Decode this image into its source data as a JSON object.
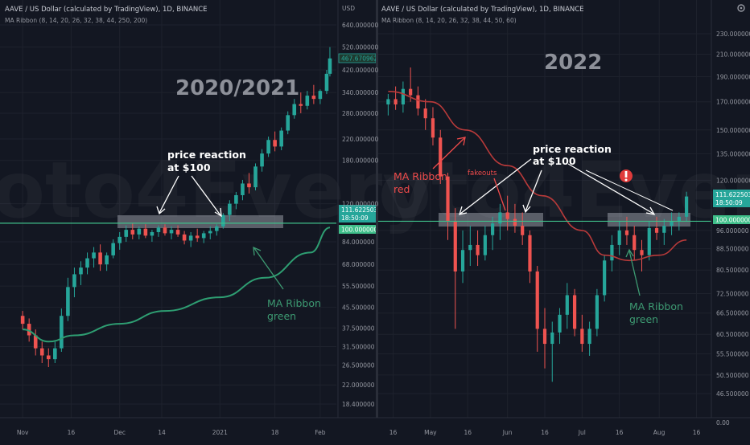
{
  "colors": {
    "background": "#131722",
    "bull": "#26a69a",
    "bear": "#ef5350",
    "ribbon_red": "#b83a3a",
    "ribbon_green": "#2e9e72",
    "grid": "#1e222d",
    "zone_fill": "#b2b5be",
    "level_line": "#3fbf8a"
  },
  "left_pane": {
    "title": "AAVE / US Dollar (calculated by TradingView), 1D, BINANCE",
    "subtitle": "MA Ribbon (8, 14, 20, 26, 32, 38, 44, 250, 200)",
    "year_label": "2020/2021",
    "currency_label": "USD",
    "annotation_price": [
      "price reaction",
      "at $100"
    ],
    "annotation_ma": [
      "MA Ribbon",
      "green"
    ],
    "badges": {
      "top_price": "467.670962",
      "last_price": "111.622503",
      "countdown": "18:50:09",
      "level": "100.000000"
    }
  },
  "right_pane": {
    "title": "AAVE / US Dollar (calculated by TradingView), 1D, BINANCE",
    "subtitle": "MA Ribbon (8, 14, 20, 26, 32, 38, 44, 50, 60)",
    "year_label": "2022",
    "annotation_price": [
      "price reaction",
      "at $100"
    ],
    "annotation_ma_red": [
      "MA Ribbon",
      "red"
    ],
    "annotation_fakeouts": "fakeouts",
    "annotation_ma_green": [
      "MA Ribbon",
      "green"
    ],
    "alert_icon": "exclamation-circle-icon",
    "badges": {
      "last_price": "111.622503",
      "countdown": "18:50:09",
      "level": "100.000000"
    }
  },
  "chart_data": [
    {
      "type": "line",
      "pane": "left",
      "y_scale": "log",
      "y_ticks": [
        "640.000000",
        "520.000000",
        "420.000000",
        "340.000000",
        "280.000000",
        "220.000000",
        "180.000000",
        "120.000000",
        "84.000000",
        "68.000000",
        "55.500000",
        "45.500000",
        "37.500000",
        "31.500000",
        "26.500000",
        "22.000000",
        "18.400000"
      ],
      "x_ticks": [
        "Nov",
        "16",
        "Dec",
        "14",
        "2021",
        "18",
        "Feb"
      ],
      "candles": [
        {
          "x": "Nov 01",
          "o": 42,
          "h": 44,
          "l": 37,
          "c": 39
        },
        {
          "x": "Nov 03",
          "o": 39,
          "h": 41,
          "l": 33,
          "c": 35
        },
        {
          "x": "Nov 05",
          "o": 35,
          "h": 37,
          "l": 29,
          "c": 31
        },
        {
          "x": "Nov 07",
          "o": 31,
          "h": 33,
          "l": 27,
          "c": 29
        },
        {
          "x": "Nov 09",
          "o": 29,
          "h": 31,
          "l": 26,
          "c": 28
        },
        {
          "x": "Nov 11",
          "o": 28,
          "h": 33,
          "l": 27,
          "c": 31
        },
        {
          "x": "Nov 13",
          "o": 31,
          "h": 45,
          "l": 30,
          "c": 42
        },
        {
          "x": "Nov 15",
          "o": 42,
          "h": 60,
          "l": 40,
          "c": 55
        },
        {
          "x": "Nov 17",
          "o": 55,
          "h": 66,
          "l": 50,
          "c": 62
        },
        {
          "x": "Nov 19",
          "o": 62,
          "h": 70,
          "l": 56,
          "c": 66
        },
        {
          "x": "Nov 21",
          "o": 66,
          "h": 76,
          "l": 62,
          "c": 72
        },
        {
          "x": "Nov 23",
          "o": 72,
          "h": 80,
          "l": 66,
          "c": 76
        },
        {
          "x": "Nov 25",
          "o": 76,
          "h": 82,
          "l": 64,
          "c": 68
        },
        {
          "x": "Nov 27",
          "o": 68,
          "h": 76,
          "l": 64,
          "c": 74
        },
        {
          "x": "Nov 29",
          "o": 74,
          "h": 86,
          "l": 72,
          "c": 83
        },
        {
          "x": "Dec 01",
          "o": 83,
          "h": 92,
          "l": 78,
          "c": 88
        },
        {
          "x": "Dec 03",
          "o": 88,
          "h": 98,
          "l": 84,
          "c": 94
        },
        {
          "x": "Dec 05",
          "o": 94,
          "h": 100,
          "l": 86,
          "c": 90
        },
        {
          "x": "Dec 07",
          "o": 90,
          "h": 97,
          "l": 86,
          "c": 95
        },
        {
          "x": "Dec 09",
          "o": 95,
          "h": 99,
          "l": 87,
          "c": 89
        },
        {
          "x": "Dec 11",
          "o": 89,
          "h": 94,
          "l": 84,
          "c": 92
        },
        {
          "x": "Dec 13",
          "o": 92,
          "h": 98,
          "l": 88,
          "c": 96
        },
        {
          "x": "Dec 15",
          "o": 96,
          "h": 99,
          "l": 89,
          "c": 91
        },
        {
          "x": "Dec 17",
          "o": 91,
          "h": 97,
          "l": 86,
          "c": 94
        },
        {
          "x": "Dec 19",
          "o": 94,
          "h": 98,
          "l": 88,
          "c": 90
        },
        {
          "x": "Dec 21",
          "o": 90,
          "h": 93,
          "l": 82,
          "c": 85
        },
        {
          "x": "Dec 23",
          "o": 85,
          "h": 92,
          "l": 80,
          "c": 89
        },
        {
          "x": "Dec 25",
          "o": 89,
          "h": 95,
          "l": 84,
          "c": 87
        },
        {
          "x": "Dec 27",
          "o": 87,
          "h": 93,
          "l": 83,
          "c": 91
        },
        {
          "x": "Dec 29",
          "o": 91,
          "h": 97,
          "l": 86,
          "c": 93
        },
        {
          "x": "Dec 31",
          "o": 93,
          "h": 99,
          "l": 89,
          "c": 97
        },
        {
          "x": "Jan 02",
          "o": 97,
          "h": 110,
          "l": 95,
          "c": 108
        },
        {
          "x": "Jan 04",
          "o": 108,
          "h": 124,
          "l": 102,
          "c": 120
        },
        {
          "x": "Jan 06",
          "o": 120,
          "h": 134,
          "l": 114,
          "c": 130
        },
        {
          "x": "Jan 08",
          "o": 130,
          "h": 150,
          "l": 124,
          "c": 145
        },
        {
          "x": "Jan 10",
          "o": 145,
          "h": 160,
          "l": 132,
          "c": 140
        },
        {
          "x": "Jan 12",
          "o": 140,
          "h": 175,
          "l": 136,
          "c": 170
        },
        {
          "x": "Jan 14",
          "o": 170,
          "h": 200,
          "l": 162,
          "c": 192
        },
        {
          "x": "Jan 16",
          "o": 192,
          "h": 225,
          "l": 186,
          "c": 218
        },
        {
          "x": "Jan 18",
          "o": 218,
          "h": 236,
          "l": 196,
          "c": 205
        },
        {
          "x": "Jan 20",
          "o": 205,
          "h": 245,
          "l": 198,
          "c": 238
        },
        {
          "x": "Jan 22",
          "o": 238,
          "h": 285,
          "l": 230,
          "c": 275
        },
        {
          "x": "Jan 24",
          "o": 275,
          "h": 320,
          "l": 266,
          "c": 305
        },
        {
          "x": "Jan 26",
          "o": 305,
          "h": 340,
          "l": 280,
          "c": 300
        },
        {
          "x": "Jan 28",
          "o": 300,
          "h": 345,
          "l": 290,
          "c": 330
        },
        {
          "x": "Jan 30",
          "o": 330,
          "h": 365,
          "l": 305,
          "c": 320
        },
        {
          "x": "Feb 01",
          "o": 320,
          "h": 350,
          "l": 305,
          "c": 345
        },
        {
          "x": "Feb 03",
          "o": 345,
          "h": 420,
          "l": 335,
          "c": 405
        },
        {
          "x": "Feb 04",
          "o": 405,
          "h": 520,
          "l": 395,
          "c": 467.67
        }
      ],
      "ma_ribbon": [
        {
          "x": "Nov 01",
          "y": 37
        },
        {
          "x": "Nov 09",
          "y": 33
        },
        {
          "x": "Nov 17",
          "y": 35
        },
        {
          "x": "Dec 01",
          "y": 39
        },
        {
          "x": "Dec 15",
          "y": 44
        },
        {
          "x": "Jan 01",
          "y": 50
        },
        {
          "x": "Jan 15",
          "y": 60
        },
        {
          "x": "Jan 29",
          "y": 76
        },
        {
          "x": "Feb 04",
          "y": 96
        }
      ],
      "level": 100
    },
    {
      "type": "line",
      "pane": "right",
      "y_scale": "log",
      "y_ticks": [
        "230.000000",
        "210.000000",
        "190.000000",
        "170.000000",
        "150.000000",
        "135.000000",
        "120.000000",
        "96.000000",
        "88.500000",
        "80.500000",
        "72.500000",
        "66.500000",
        "60.500000",
        "55.500000",
        "50.500000",
        "46.500000",
        "0.00"
      ],
      "x_ticks": [
        "16",
        "May",
        "16",
        "Jun",
        "16",
        "Jul",
        "16",
        "Aug",
        "16"
      ],
      "candles": [
        {
          "x": "Apr 14",
          "o": 168,
          "h": 176,
          "l": 160,
          "c": 172
        },
        {
          "x": "Apr 17",
          "o": 172,
          "h": 182,
          "l": 164,
          "c": 168
        },
        {
          "x": "Apr 20",
          "o": 168,
          "h": 186,
          "l": 162,
          "c": 180
        },
        {
          "x": "Apr 23",
          "o": 180,
          "h": 198,
          "l": 170,
          "c": 175
        },
        {
          "x": "Apr 26",
          "o": 175,
          "h": 182,
          "l": 160,
          "c": 165
        },
        {
          "x": "Apr 29",
          "o": 165,
          "h": 172,
          "l": 150,
          "c": 158
        },
        {
          "x": "May 02",
          "o": 158,
          "h": 166,
          "l": 140,
          "c": 145
        },
        {
          "x": "May 05",
          "o": 145,
          "h": 150,
          "l": 118,
          "c": 122
        },
        {
          "x": "May 08",
          "o": 122,
          "h": 124,
          "l": 92,
          "c": 100
        },
        {
          "x": "May 11",
          "o": 100,
          "h": 106,
          "l": 62,
          "c": 80
        },
        {
          "x": "May 14",
          "o": 80,
          "h": 96,
          "l": 76,
          "c": 88
        },
        {
          "x": "May 17",
          "o": 88,
          "h": 98,
          "l": 82,
          "c": 90
        },
        {
          "x": "May 20",
          "o": 90,
          "h": 96,
          "l": 82,
          "c": 86
        },
        {
          "x": "May 23",
          "o": 86,
          "h": 98,
          "l": 84,
          "c": 94
        },
        {
          "x": "May 26",
          "o": 94,
          "h": 102,
          "l": 88,
          "c": 99
        },
        {
          "x": "May 29",
          "o": 99,
          "h": 108,
          "l": 92,
          "c": 104
        },
        {
          "x": "Jun 01",
          "o": 104,
          "h": 112,
          "l": 96,
          "c": 101
        },
        {
          "x": "Jun 04",
          "o": 101,
          "h": 108,
          "l": 95,
          "c": 98
        },
        {
          "x": "Jun 07",
          "o": 98,
          "h": 104,
          "l": 90,
          "c": 94
        },
        {
          "x": "Jun 10",
          "o": 94,
          "h": 96,
          "l": 76,
          "c": 80
        },
        {
          "x": "Jun 13",
          "o": 80,
          "h": 82,
          "l": 56,
          "c": 62
        },
        {
          "x": "Jun 16",
          "o": 62,
          "h": 68,
          "l": 52,
          "c": 58
        },
        {
          "x": "Jun 19",
          "o": 58,
          "h": 64,
          "l": 49,
          "c": 61
        },
        {
          "x": "Jun 22",
          "o": 61,
          "h": 68,
          "l": 58,
          "c": 66
        },
        {
          "x": "Jun 25",
          "o": 66,
          "h": 76,
          "l": 62,
          "c": 72
        },
        {
          "x": "Jun 28",
          "o": 72,
          "h": 74,
          "l": 60,
          "c": 62
        },
        {
          "x": "Jul 01",
          "o": 62,
          "h": 66,
          "l": 56,
          "c": 58
        },
        {
          "x": "Jul 04",
          "o": 58,
          "h": 64,
          "l": 55,
          "c": 62
        },
        {
          "x": "Jul 07",
          "o": 62,
          "h": 74,
          "l": 60,
          "c": 72
        },
        {
          "x": "Jul 10",
          "o": 72,
          "h": 86,
          "l": 70,
          "c": 84
        },
        {
          "x": "Jul 13",
          "o": 84,
          "h": 94,
          "l": 80,
          "c": 90
        },
        {
          "x": "Jul 16",
          "o": 90,
          "h": 100,
          "l": 86,
          "c": 96
        },
        {
          "x": "Jul 19",
          "o": 96,
          "h": 102,
          "l": 90,
          "c": 94
        },
        {
          "x": "Jul 22",
          "o": 94,
          "h": 98,
          "l": 84,
          "c": 88
        },
        {
          "x": "Jul 25",
          "o": 88,
          "h": 92,
          "l": 80,
          "c": 86
        },
        {
          "x": "Jul 28",
          "o": 86,
          "h": 100,
          "l": 84,
          "c": 97
        },
        {
          "x": "Jul 31",
          "o": 97,
          "h": 102,
          "l": 92,
          "c": 95
        },
        {
          "x": "Aug 03",
          "o": 95,
          "h": 101,
          "l": 90,
          "c": 98
        },
        {
          "x": "Aug 06",
          "o": 98,
          "h": 104,
          "l": 94,
          "c": 100
        },
        {
          "x": "Aug 09",
          "o": 100,
          "h": 104,
          "l": 96,
          "c": 102
        },
        {
          "x": "Aug 12",
          "o": 102,
          "h": 114,
          "l": 100,
          "c": 111.62
        }
      ],
      "ma_ribbon": [
        {
          "x": "Apr 14",
          "y": 178
        },
        {
          "x": "May 01",
          "y": 170
        },
        {
          "x": "May 15",
          "y": 150
        },
        {
          "x": "Jun 01",
          "y": 128
        },
        {
          "x": "Jun 15",
          "y": 112
        },
        {
          "x": "Jul 01",
          "y": 96
        },
        {
          "x": "Jul 10",
          "y": 86
        },
        {
          "x": "Jul 20",
          "y": 84
        },
        {
          "x": "Aug 01",
          "y": 86
        },
        {
          "x": "Aug 12",
          "y": 92
        }
      ],
      "level": 100
    }
  ]
}
